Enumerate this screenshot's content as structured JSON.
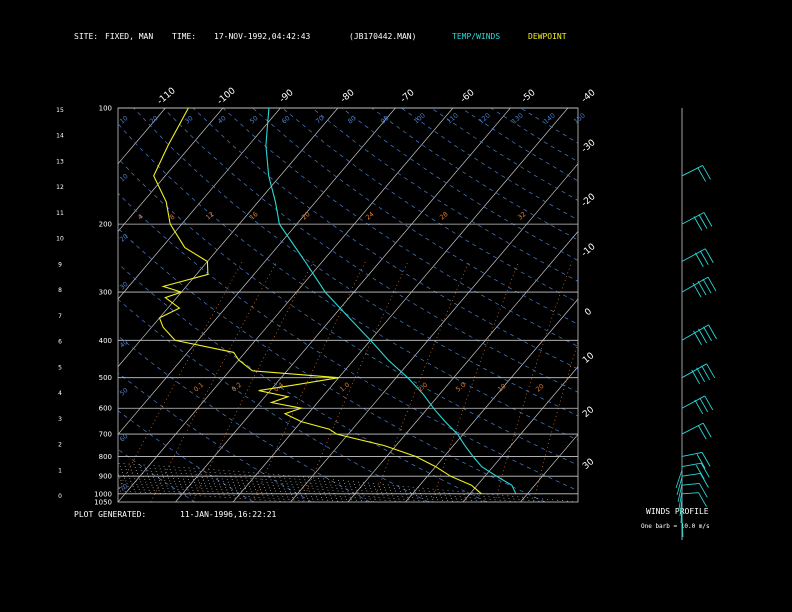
{
  "header": {
    "site_label": "SITE:",
    "site_value": "FIXED, MAN",
    "time_label": "TIME:",
    "time_value": "17-NOV-1992,04:42:43",
    "file_value": "(JB170442.MAN)",
    "legend_temp": "TEMP/WINDS",
    "legend_dew": "DEWPOINT"
  },
  "footer": {
    "generated_label": "PLOT GENERATED:",
    "generated_value": "11-JAN-1996,16:22:21"
  },
  "wind_profile": {
    "title": "WINDS PROFILE",
    "subtitle": "One barb = 10.0 m/s"
  },
  "colors": {
    "temp": "#29d8d8",
    "dewpoint": "#f0f020",
    "grid": "#c8c8c8",
    "mixing_ratio": "#e07a2a",
    "dry_adiabat": "#4a7fd0",
    "moist_adiabat": "#d8d8d8"
  },
  "chart_data": {
    "type": "line",
    "title": "",
    "pressure_ticks": [
      "100",
      "200",
      "300",
      "400",
      "500",
      "600",
      "700",
      "800",
      "900",
      "1000",
      "1050"
    ],
    "height_ticks": [
      "0",
      "1",
      "2",
      "3",
      "4",
      "5",
      "6",
      "7",
      "8",
      "9",
      "10",
      "11",
      "12",
      "13",
      "14",
      "15"
    ],
    "temp_ticks_top": [
      "-110",
      "-100",
      "-90",
      "-80",
      "-70",
      "-60",
      "-50",
      "-40"
    ],
    "temp_ticks_right": [
      "-30",
      "-20",
      "-10",
      "0",
      "10",
      "20",
      "30"
    ],
    "dry_adiabat_labels": [
      "10",
      "20",
      "30",
      "40",
      "50",
      "60",
      "70",
      "80",
      "90",
      "100",
      "110",
      "120",
      "130",
      "140",
      "150"
    ],
    "mixing_ratio_labels": [
      "0.1",
      "0.2",
      "0.4",
      "1.0",
      "2.0",
      "5.0",
      "10",
      "20"
    ],
    "orange_upper_labels": [
      "4",
      "8",
      "12",
      "16",
      "20",
      "24",
      "28",
      "32"
    ],
    "pressure_range": [
      1050,
      100
    ],
    "temperature_range": [
      -40,
      40
    ],
    "series": [
      {
        "name": "TEMP/WINDS",
        "points": [
          [
            1000,
            28
          ],
          [
            950,
            26
          ],
          [
            900,
            22
          ],
          [
            850,
            18
          ],
          [
            800,
            15
          ],
          [
            750,
            12
          ],
          [
            700,
            9
          ],
          [
            650,
            5
          ],
          [
            600,
            1
          ],
          [
            550,
            -3
          ],
          [
            500,
            -8
          ],
          [
            450,
            -14
          ],
          [
            400,
            -20
          ],
          [
            350,
            -27
          ],
          [
            300,
            -35
          ],
          [
            250,
            -43
          ],
          [
            200,
            -53
          ],
          [
            175,
            -57
          ],
          [
            150,
            -62
          ],
          [
            125,
            -67
          ],
          [
            100,
            -72
          ]
        ]
      },
      {
        "name": "DEWPOINT",
        "points": [
          [
            1000,
            22
          ],
          [
            950,
            19
          ],
          [
            900,
            14
          ],
          [
            850,
            10
          ],
          [
            800,
            5
          ],
          [
            750,
            -2
          ],
          [
            700,
            -12
          ],
          [
            680,
            -14
          ],
          [
            650,
            -20
          ],
          [
            620,
            -24
          ],
          [
            600,
            -22
          ],
          [
            580,
            -28
          ],
          [
            560,
            -26
          ],
          [
            540,
            -32
          ],
          [
            520,
            -26
          ],
          [
            500,
            -20
          ],
          [
            480,
            -36
          ],
          [
            450,
            -40
          ],
          [
            430,
            -42
          ],
          [
            400,
            -54
          ],
          [
            370,
            -58
          ],
          [
            350,
            -60
          ],
          [
            330,
            -58
          ],
          [
            310,
            -62
          ],
          [
            300,
            -60
          ],
          [
            290,
            -64
          ],
          [
            270,
            -58
          ],
          [
            250,
            -60
          ],
          [
            230,
            -66
          ],
          [
            200,
            -72
          ],
          [
            175,
            -76
          ],
          [
            150,
            -82
          ],
          [
            125,
            -84
          ],
          [
            100,
            -86
          ]
        ]
      }
    ],
    "winds": [
      {
        "pressure": 1000,
        "speed_ms": 5,
        "direction_deg": 200
      },
      {
        "pressure": 950,
        "speed_ms": 8,
        "direction_deg": 230
      },
      {
        "pressure": 900,
        "speed_ms": 12,
        "direction_deg": 250
      },
      {
        "pressure": 850,
        "speed_ms": 15,
        "direction_deg": 260
      },
      {
        "pressure": 800,
        "speed_ms": 18,
        "direction_deg": 270
      },
      {
        "pressure": 700,
        "speed_ms": 22,
        "direction_deg": 275
      },
      {
        "pressure": 600,
        "speed_ms": 28,
        "direction_deg": 280
      },
      {
        "pressure": 500,
        "speed_ms": 35,
        "direction_deg": 285
      },
      {
        "pressure": 400,
        "speed_ms": 42,
        "direction_deg": 290
      },
      {
        "pressure": 300,
        "speed_ms": 40,
        "direction_deg": 285
      },
      {
        "pressure": 250,
        "speed_ms": 30,
        "direction_deg": 280
      },
      {
        "pressure": 200,
        "speed_ms": 25,
        "direction_deg": 270
      },
      {
        "pressure": 150,
        "speed_ms": 20,
        "direction_deg": 260
      }
    ]
  }
}
